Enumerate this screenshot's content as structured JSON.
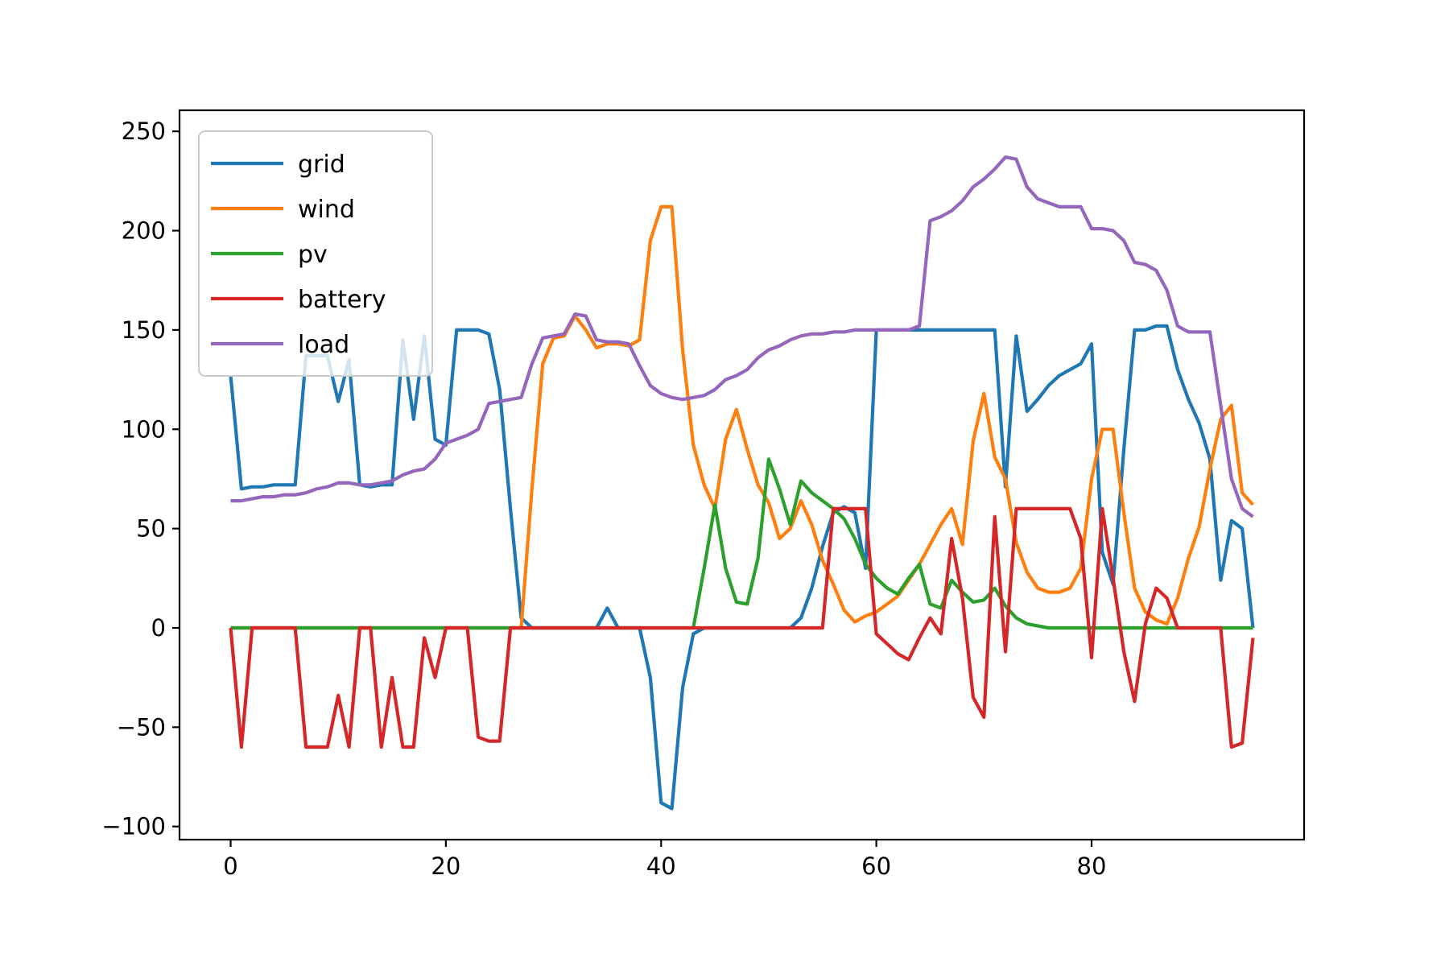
{
  "figure": {
    "background": "#ffffff",
    "border_color": "#000000"
  },
  "chart_data": {
    "type": "line",
    "title": "",
    "xlabel": "",
    "ylabel": "",
    "grid": false,
    "legend_position": "upper-left",
    "legend_border_color": "#cccccc",
    "legend_background": "#ffffff",
    "xlim": [
      -4.75,
      99.75
    ],
    "ylim": [
      -106.6,
      260.6
    ],
    "x_ticks": [
      0,
      20,
      40,
      60,
      80
    ],
    "x_tick_labels": [
      "0",
      "20",
      "40",
      "60",
      "80"
    ],
    "y_ticks": [
      -100,
      -50,
      0,
      50,
      100,
      150,
      200,
      250
    ],
    "y_tick_labels": [
      "−100",
      "−50",
      "0",
      "50",
      "100",
      "150",
      "200",
      "250"
    ],
    "x": [
      0,
      1,
      2,
      3,
      4,
      5,
      6,
      7,
      8,
      9,
      10,
      11,
      12,
      13,
      14,
      15,
      16,
      17,
      18,
      19,
      20,
      21,
      22,
      23,
      24,
      25,
      26,
      27,
      28,
      29,
      30,
      31,
      32,
      33,
      34,
      35,
      36,
      37,
      38,
      39,
      40,
      41,
      42,
      43,
      44,
      45,
      46,
      47,
      48,
      49,
      50,
      51,
      52,
      53,
      54,
      55,
      56,
      57,
      58,
      59,
      60,
      61,
      62,
      63,
      64,
      65,
      66,
      67,
      68,
      69,
      70,
      71,
      72,
      73,
      74,
      75,
      76,
      77,
      78,
      79,
      80,
      81,
      82,
      83,
      84,
      85,
      86,
      87,
      88,
      89,
      90,
      91,
      92,
      93,
      94,
      95
    ],
    "series": [
      {
        "name": "grid",
        "color": "#1f77b4",
        "values": [
          127,
          70,
          71,
          71,
          72,
          72,
          72,
          137,
          137,
          137,
          114,
          135,
          72,
          71,
          72,
          72,
          145,
          105,
          147,
          95,
          92,
          150,
          150,
          150,
          148,
          120,
          60,
          5,
          0,
          0,
          0,
          0,
          0,
          0,
          0,
          10,
          0,
          0,
          0,
          -25,
          -88,
          -91,
          -30,
          -3,
          0,
          0,
          0,
          0,
          0,
          0,
          0,
          0,
          0,
          5,
          20,
          41,
          58,
          61,
          58,
          30,
          150,
          150,
          150,
          150,
          150,
          150,
          150,
          150,
          150,
          150,
          150,
          150,
          71,
          147,
          109,
          115,
          122,
          127,
          130,
          133,
          143,
          38,
          22,
          90,
          150,
          150,
          152,
          152,
          130,
          115,
          103,
          85,
          24,
          54,
          50,
          0
        ]
      },
      {
        "name": "wind",
        "color": "#ff7f0e",
        "values": [
          0,
          0,
          0,
          0,
          0,
          0,
          0,
          0,
          0,
          0,
          0,
          0,
          0,
          0,
          0,
          0,
          0,
          0,
          0,
          0,
          0,
          0,
          0,
          0,
          0,
          0,
          0,
          0,
          70,
          133,
          146,
          147,
          157,
          150,
          141,
          143,
          143,
          142,
          145,
          195,
          212,
          212,
          140,
          92,
          72,
          60,
          95,
          110,
          90,
          72,
          63,
          45,
          50,
          64,
          52,
          34,
          22,
          9,
          3,
          6,
          8,
          12,
          16,
          24,
          32,
          42,
          52,
          60,
          42,
          94,
          118,
          86,
          75,
          43,
          28,
          20,
          18,
          18,
          20,
          30,
          75,
          100,
          100,
          58,
          20,
          8,
          4,
          2,
          15,
          35,
          51,
          80,
          105,
          112,
          68,
          62
        ]
      },
      {
        "name": "pv",
        "color": "#2ca02c",
        "values": [
          0,
          0,
          0,
          0,
          0,
          0,
          0,
          0,
          0,
          0,
          0,
          0,
          0,
          0,
          0,
          0,
          0,
          0,
          0,
          0,
          0,
          0,
          0,
          0,
          0,
          0,
          0,
          0,
          0,
          0,
          0,
          0,
          0,
          0,
          0,
          0,
          0,
          0,
          0,
          0,
          0,
          0,
          0,
          0,
          30,
          62,
          30,
          13,
          12,
          35,
          85,
          70,
          52,
          74,
          68,
          64,
          60,
          55,
          45,
          32,
          25,
          20,
          17,
          25,
          32,
          12,
          10,
          24,
          18,
          13,
          14,
          20,
          11,
          5,
          2,
          1,
          0,
          0,
          0,
          0,
          0,
          0,
          0,
          0,
          0,
          0,
          0,
          0,
          0,
          0,
          0,
          0,
          0,
          0,
          0,
          0
        ]
      },
      {
        "name": "battery",
        "color": "#d62728",
        "values": [
          0,
          -60,
          0,
          0,
          0,
          0,
          0,
          -60,
          -60,
          -60,
          -34,
          -60,
          0,
          0,
          -60,
          -25,
          -60,
          -60,
          -5,
          -25,
          0,
          0,
          0,
          -55,
          -57,
          -57,
          0,
          0,
          0,
          0,
          0,
          0,
          0,
          0,
          0,
          0,
          0,
          0,
          0,
          0,
          0,
          0,
          0,
          0,
          0,
          0,
          0,
          0,
          0,
          0,
          0,
          0,
          0,
          0,
          0,
          0,
          60,
          60,
          60,
          60,
          -3,
          -8,
          -13,
          -16,
          -5,
          5,
          -3,
          45,
          15,
          -35,
          -45,
          56,
          -12,
          60,
          60,
          60,
          60,
          60,
          60,
          45,
          -15,
          60,
          25,
          -12,
          -37,
          2,
          20,
          15,
          0,
          0,
          0,
          0,
          0,
          -60,
          -58,
          -5
        ]
      },
      {
        "name": "load",
        "color": "#9467bd",
        "values": [
          64,
          64,
          65,
          66,
          66,
          67,
          67,
          68,
          70,
          71,
          73,
          73,
          72,
          72,
          73,
          74,
          77,
          79,
          80,
          85,
          93,
          95,
          97,
          100,
          113,
          114,
          115,
          116,
          133,
          146,
          147,
          148,
          158,
          157,
          145,
          144,
          144,
          143,
          132,
          122,
          118,
          116,
          115,
          116,
          117,
          120,
          125,
          127,
          130,
          136,
          140,
          142,
          145,
          147,
          148,
          148,
          149,
          149,
          150,
          150,
          150,
          150,
          150,
          150,
          152,
          205,
          207,
          210,
          215,
          222,
          226,
          231,
          237,
          236,
          222,
          216,
          214,
          212,
          212,
          212,
          201,
          201,
          200,
          195,
          184,
          183,
          180,
          170,
          152,
          149,
          149,
          149,
          112,
          75,
          60,
          56
        ]
      }
    ]
  }
}
